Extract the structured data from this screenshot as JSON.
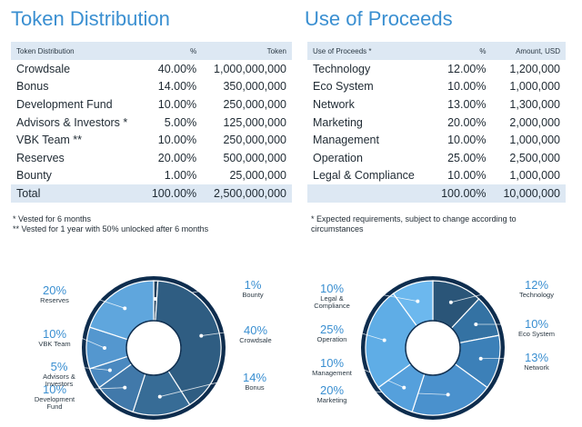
{
  "left": {
    "title": "Token Distribution",
    "headers": [
      "Token Distribution",
      "%",
      "Token"
    ],
    "rows": [
      [
        "Crowdsale",
        "40.00%",
        "1,000,000,000"
      ],
      [
        "Bonus",
        "14.00%",
        "350,000,000"
      ],
      [
        "Development Fund",
        "10.00%",
        "250,000,000"
      ],
      [
        "Advisors & Investors *",
        "5.00%",
        "125,000,000"
      ],
      [
        "VBK Team **",
        "10.00%",
        "250,000,000"
      ],
      [
        "Reserves",
        "20.00%",
        "500,000,000"
      ],
      [
        "Bounty",
        "1.00%",
        "25,000,000"
      ]
    ],
    "total": [
      "Total",
      "100.00%",
      "2,500,000,000"
    ],
    "notes": [
      "* Vested for 6 months",
      "** Vested for 1 year with 50% unlocked after 6 months"
    ]
  },
  "right": {
    "title": "Use of Proceeds",
    "headers": [
      "Use of Proceeds *",
      "%",
      "Amount, USD"
    ],
    "rows": [
      [
        "Technology",
        "12.00%",
        "1,200,000"
      ],
      [
        "Eco System",
        "10.00%",
        "1,000,000"
      ],
      [
        "Network",
        "13.00%",
        "1,300,000"
      ],
      [
        "Marketing",
        "20.00%",
        "2,000,000"
      ],
      [
        "Management",
        "10.00%",
        "1,000,000"
      ],
      [
        "Operation",
        "25.00%",
        "2,500,000"
      ],
      [
        "Legal & Compliance",
        "10.00%",
        "1,000,000"
      ]
    ],
    "total": [
      "",
      "100.00%",
      "10,000,000"
    ],
    "notes": [
      "* Expected requirements, subject to change according to",
      "circumstances"
    ]
  },
  "chart_data": [
    {
      "type": "pie",
      "categories": [
        "Bounty",
        "Crowdsale",
        "Bonus",
        "Development Fund",
        "Advisors & Investors",
        "VBK Team",
        "Reserves"
      ],
      "values": [
        1,
        40,
        14,
        10,
        5,
        10,
        20
      ],
      "labels": [
        "1%",
        "40%",
        "14%",
        "10%",
        "5%",
        "10%",
        "20%"
      ],
      "colors": [
        "#1e3f5c",
        "#2f5d82",
        "#376c96",
        "#4179aa",
        "#4a89c0",
        "#5497cf",
        "#5fa6dd"
      ]
    },
    {
      "type": "pie",
      "categories": [
        "Technology",
        "Eco System",
        "Network",
        "Marketing",
        "Management",
        "Operation",
        "Legal & Compliance"
      ],
      "values": [
        12,
        10,
        13,
        20,
        10,
        25,
        10
      ],
      "labels": [
        "12%",
        "10%",
        "13%",
        "20%",
        "10%",
        "25%",
        "10%"
      ],
      "colors": [
        "#2a5578",
        "#3472a3",
        "#3c80b8",
        "#4a91cd",
        "#55a0dc",
        "#5fade6",
        "#6cb8ee"
      ]
    }
  ]
}
